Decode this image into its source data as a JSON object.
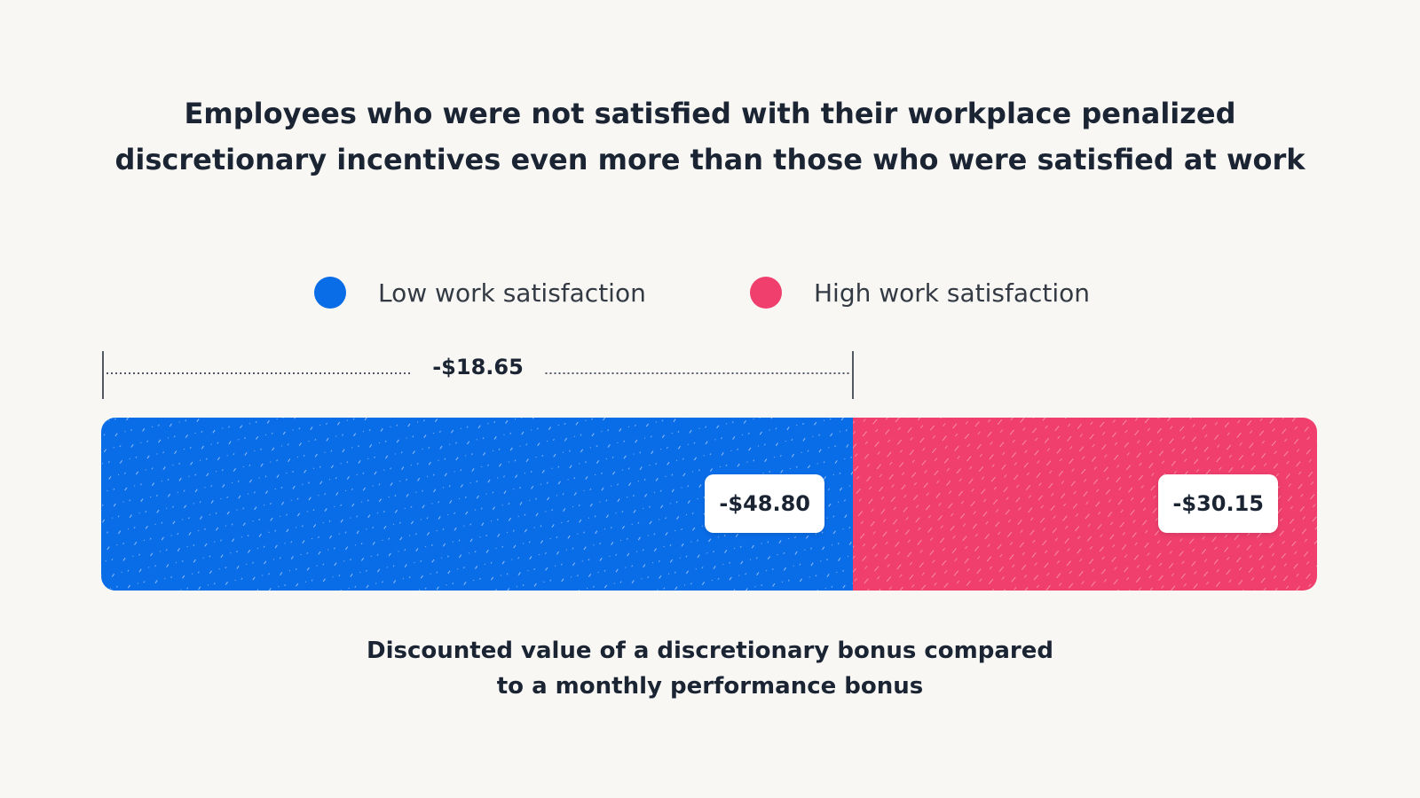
{
  "chart_data": {
    "type": "bar",
    "orientation": "horizontal-stacked",
    "title": "Employees who were not satisfied with their workplace penalized discretionary incentives even more than those who were satisfied at work",
    "caption_lines": [
      "Discounted value of a discretionary bonus compared",
      "to a monthly performance bonus"
    ],
    "legend_placement": "top-center",
    "grid": false,
    "series": [
      {
        "name": "Low work satisfaction",
        "value": -48.8,
        "label": "-$48.80",
        "color": "#0a6de8"
      },
      {
        "name": "High work satisfaction",
        "value": -30.15,
        "label": "-$30.15",
        "color": "#f03f6d"
      }
    ],
    "difference": {
      "value": -18.65,
      "label": "-$18.65"
    }
  }
}
